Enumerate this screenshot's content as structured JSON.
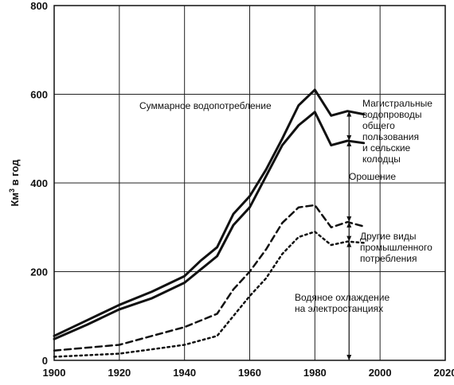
{
  "chart_data": {
    "type": "line",
    "ylabel_main": "Км",
    "ylabel_sup": "3",
    "ylabel_rest": " в год",
    "xlim": [
      1900,
      2020
    ],
    "ylim": [
      0,
      800
    ],
    "xticks": [
      "1900",
      "1920",
      "1940",
      "1960",
      "1980",
      "2000",
      "2020"
    ],
    "yticks": [
      "0",
      "200",
      "400",
      "600",
      "800"
    ],
    "grid": true,
    "series": [
      {
        "style": "solid-thick",
        "x": [
          1900,
          1910,
          1920,
          1930,
          1940,
          1945,
          1950,
          1955,
          1960,
          1965,
          1970,
          1975,
          1980,
          1985,
          1990,
          1995
        ],
        "values": [
          55,
          90,
          125,
          155,
          190,
          225,
          255,
          330,
          370,
          430,
          500,
          575,
          610,
          552,
          562,
          555
        ]
      },
      {
        "style": "solid-thick",
        "x": [
          1900,
          1910,
          1920,
          1930,
          1940,
          1945,
          1950,
          1955,
          1960,
          1965,
          1970,
          1975,
          1980,
          1985,
          1990,
          1995
        ],
        "values": [
          48,
          80,
          115,
          140,
          175,
          205,
          235,
          305,
          345,
          415,
          485,
          530,
          560,
          485,
          495,
          490
        ]
      },
      {
        "style": "dashed",
        "x": [
          1900,
          1920,
          1930,
          1940,
          1950,
          1955,
          1960,
          1965,
          1970,
          1975,
          1980,
          1985,
          1990,
          1995
        ],
        "values": [
          22,
          35,
          55,
          75,
          105,
          160,
          200,
          250,
          310,
          345,
          350,
          300,
          312,
          302
        ]
      },
      {
        "style": "dotted",
        "x": [
          1900,
          1920,
          1930,
          1940,
          1950,
          1955,
          1960,
          1965,
          1970,
          1975,
          1980,
          1985,
          1990,
          1995
        ],
        "values": [
          8,
          15,
          25,
          35,
          55,
          100,
          145,
          185,
          240,
          278,
          290,
          260,
          268,
          265
        ]
      }
    ],
    "annotations": [
      {
        "text": "Суммарное водопотребление"
      },
      {
        "text": "Магистральные"
      },
      {
        "text": "водопроводы"
      },
      {
        "text": "общего"
      },
      {
        "text": "пользования"
      },
      {
        "text": "и сельские"
      },
      {
        "text": "колодцы"
      },
      {
        "text": "Орошение"
      },
      {
        "text": "Другие виды"
      },
      {
        "text": "промышленного"
      },
      {
        "text": "потребления"
      },
      {
        "text": "Водяное охлаждение"
      },
      {
        "text": "на электростанциях"
      }
    ],
    "span_arrows": [
      {
        "x": 1990,
        "from": 562,
        "to": 495
      },
      {
        "x": 1990,
        "from": 495,
        "to": 312
      },
      {
        "x": 1990,
        "from": 312,
        "to": 268
      },
      {
        "x": 1990,
        "from": 268,
        "to": 0
      }
    ]
  }
}
